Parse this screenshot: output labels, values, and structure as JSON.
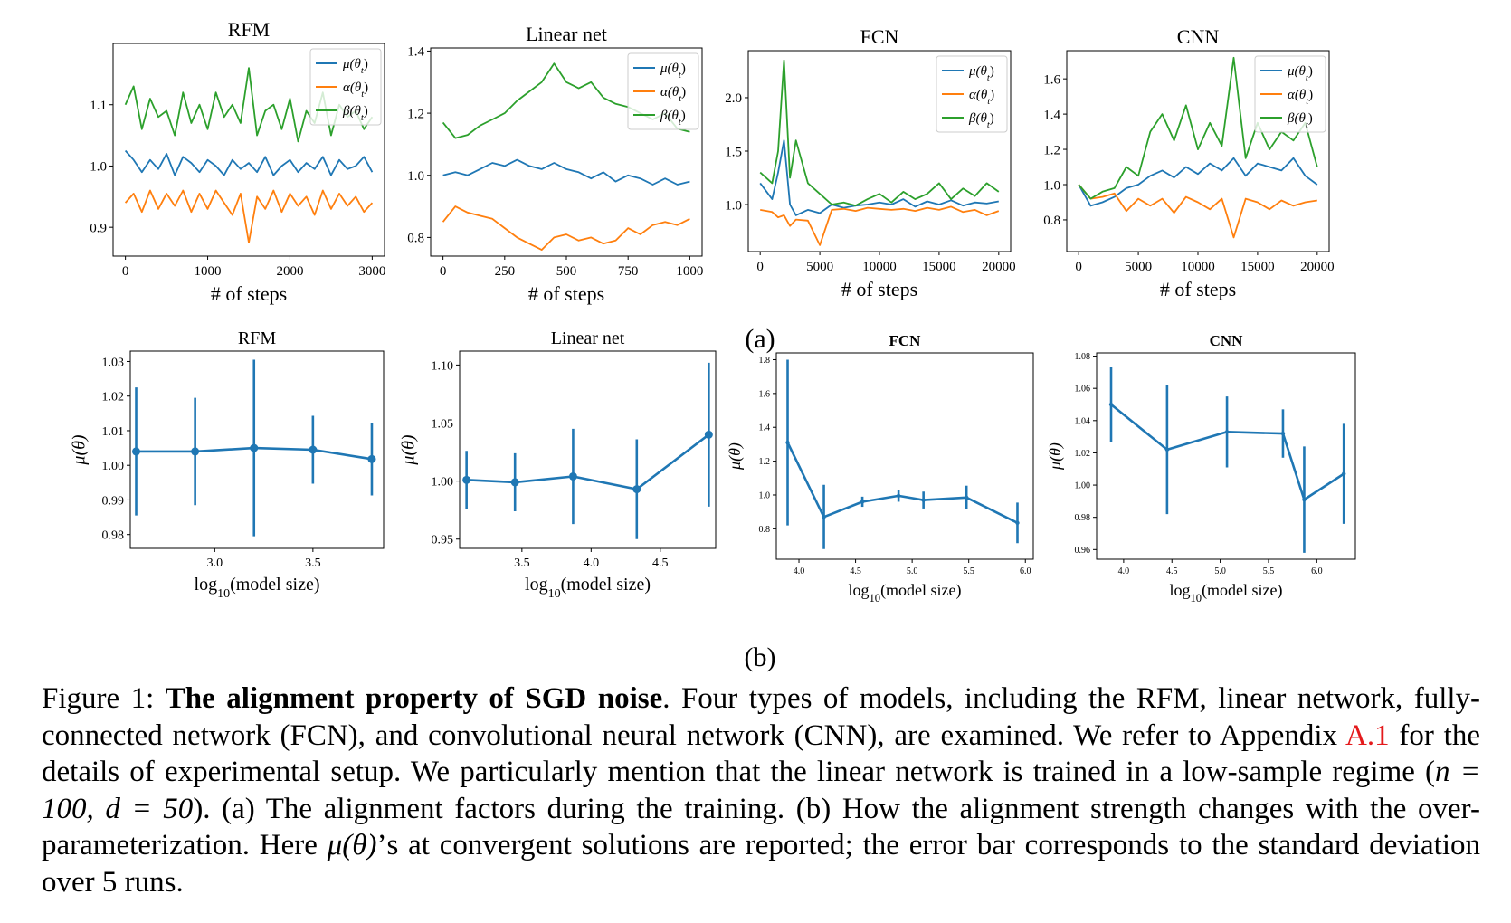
{
  "figure": {
    "row_a_label": "(a)",
    "row_b_label": "(b)",
    "legend_labels": [
      "μ(θt)",
      "α(θt)",
      "β(θt)"
    ],
    "colors": {
      "mu": "#1f77b4",
      "alpha": "#ff7f0e",
      "beta": "#2ca02c"
    }
  },
  "caption": {
    "figure_label": "Figure 1:",
    "bold_title": "The alignment property of SGD noise",
    "text_1": ". Four types of models, including the RFM, linear network, fully-connected network (FCN), and convolutional neural network (CNN), are examined. We refer to Appendix ",
    "ref": "A.1",
    "text_2": " for the details of experimental setup.  We particularly mention that the linear network is trained in a low-sample regime (",
    "math_1": "n = 100, d = 50",
    "text_3": "). (a) The alignment factors during the training. (b) How the alignment strength changes with the over-parameterization. Here ",
    "math_2": "μ(θ)",
    "text_4": "’s at convergent solutions are reported; the error bar corresponds to the standard deviation over 5 runs."
  },
  "chart_data": [
    {
      "id": "a-rfm",
      "type": "line",
      "title": "RFM",
      "xlabel": "# of steps",
      "ylabel": "",
      "xlim": [
        -150,
        3150
      ],
      "ylim": [
        0.853,
        1.2
      ],
      "xticks": [
        0,
        1000,
        2000,
        3000
      ],
      "xtick_labels": [
        "0",
        "1000",
        "2000",
        "3000"
      ],
      "yticks": [
        0.9,
        1.0,
        1.1
      ],
      "ytick_labels": [
        "0.9",
        "1.0",
        "1.1"
      ],
      "legend": "top-right",
      "grid": false,
      "x": [
        0,
        100,
        200,
        300,
        400,
        500,
        600,
        700,
        800,
        900,
        1000,
        1100,
        1200,
        1300,
        1400,
        1500,
        1600,
        1700,
        1800,
        1900,
        2000,
        2100,
        2200,
        2300,
        2400,
        2500,
        2600,
        2700,
        2800,
        2900,
        3000
      ],
      "series": [
        {
          "name": "μ(θt)",
          "color": "#1f77b4",
          "values": [
            1.025,
            1.01,
            0.99,
            1.01,
            0.995,
            1.02,
            0.985,
            1.015,
            1.005,
            0.99,
            1.01,
            1.0,
            0.985,
            1.01,
            0.995,
            1.005,
            0.99,
            1.015,
            0.985,
            1.0,
            1.01,
            0.99,
            1.005,
            0.995,
            1.015,
            0.985,
            1.01,
            0.995,
            1.0,
            1.015,
            0.99
          ]
        },
        {
          "name": "α(θt)",
          "color": "#ff7f0e",
          "values": [
            0.94,
            0.955,
            0.925,
            0.96,
            0.93,
            0.955,
            0.935,
            0.96,
            0.925,
            0.955,
            0.93,
            0.96,
            0.94,
            0.92,
            0.955,
            0.875,
            0.95,
            0.93,
            0.96,
            0.925,
            0.955,
            0.935,
            0.95,
            0.92,
            0.96,
            0.93,
            0.955,
            0.935,
            0.95,
            0.925,
            0.94
          ]
        },
        {
          "name": "β(θt)",
          "color": "#2ca02c",
          "values": [
            1.1,
            1.13,
            1.06,
            1.11,
            1.08,
            1.09,
            1.05,
            1.12,
            1.07,
            1.1,
            1.06,
            1.12,
            1.08,
            1.1,
            1.07,
            1.16,
            1.05,
            1.09,
            1.1,
            1.06,
            1.11,
            1.04,
            1.09,
            1.07,
            1.12,
            1.05,
            1.1,
            1.08,
            1.09,
            1.06,
            1.08
          ]
        }
      ]
    },
    {
      "id": "a-linear",
      "type": "line",
      "title": "Linear net",
      "xlabel": "# of steps",
      "ylabel": "",
      "xlim": [
        -50,
        1050
      ],
      "ylim": [
        0.74,
        1.41
      ],
      "xticks": [
        0,
        250,
        500,
        750,
        1000
      ],
      "xtick_labels": [
        "0",
        "250",
        "500",
        "750",
        "1000"
      ],
      "yticks": [
        0.8,
        1.0,
        1.2,
        1.4
      ],
      "ytick_labels": [
        "0.8",
        "1.0",
        "1.2",
        "1.4"
      ],
      "legend": "top-right",
      "grid": false,
      "x": [
        0,
        50,
        100,
        150,
        200,
        250,
        300,
        350,
        400,
        450,
        500,
        550,
        600,
        650,
        700,
        750,
        800,
        850,
        900,
        950,
        1000
      ],
      "series": [
        {
          "name": "μ(θt)",
          "color": "#1f77b4",
          "values": [
            1.0,
            1.01,
            1.0,
            1.02,
            1.04,
            1.03,
            1.05,
            1.03,
            1.02,
            1.04,
            1.02,
            1.01,
            0.99,
            1.01,
            0.98,
            1.0,
            0.99,
            0.97,
            0.99,
            0.97,
            0.98
          ]
        },
        {
          "name": "α(θt)",
          "color": "#ff7f0e",
          "values": [
            0.85,
            0.9,
            0.88,
            0.87,
            0.86,
            0.83,
            0.8,
            0.78,
            0.76,
            0.8,
            0.81,
            0.79,
            0.8,
            0.78,
            0.79,
            0.83,
            0.81,
            0.84,
            0.85,
            0.84,
            0.86
          ]
        },
        {
          "name": "β(θt)",
          "color": "#2ca02c",
          "values": [
            1.17,
            1.12,
            1.13,
            1.16,
            1.18,
            1.2,
            1.24,
            1.27,
            1.3,
            1.36,
            1.3,
            1.28,
            1.3,
            1.25,
            1.23,
            1.22,
            1.2,
            1.18,
            1.2,
            1.15,
            1.14
          ]
        }
      ]
    },
    {
      "id": "a-fcn",
      "type": "line",
      "title": "FCN",
      "xlabel": "# of steps",
      "ylabel": "",
      "xlim": [
        -1000,
        21000
      ],
      "ylim": [
        0.56,
        2.44
      ],
      "xticks": [
        0,
        5000,
        10000,
        15000,
        20000
      ],
      "xtick_labels": [
        "0",
        "5000",
        "10000",
        "15000",
        "20000"
      ],
      "yticks": [
        1.0,
        1.5,
        2.0
      ],
      "ytick_labels": [
        "1.0",
        "1.5",
        "2.0"
      ],
      "legend": "top-right",
      "grid": false,
      "x": [
        0,
        1000,
        1500,
        2000,
        2500,
        3000,
        4000,
        5000,
        6000,
        7000,
        8000,
        9000,
        10000,
        11000,
        12000,
        13000,
        14000,
        15000,
        16000,
        17000,
        18000,
        19000,
        20000
      ],
      "series": [
        {
          "name": "μ(θt)",
          "color": "#1f77b4",
          "values": [
            1.2,
            1.05,
            1.3,
            1.6,
            1.0,
            0.9,
            0.95,
            0.92,
            1.0,
            0.97,
            0.99,
            1.0,
            1.02,
            1.0,
            1.05,
            0.98,
            1.03,
            1.0,
            1.04,
            0.99,
            1.02,
            1.01,
            1.03
          ]
        },
        {
          "name": "α(θt)",
          "color": "#ff7f0e",
          "values": [
            0.95,
            0.93,
            0.88,
            0.9,
            0.8,
            0.86,
            0.85,
            0.62,
            0.95,
            0.96,
            0.94,
            0.97,
            0.96,
            0.95,
            0.96,
            0.94,
            0.97,
            0.95,
            0.98,
            0.93,
            0.95,
            0.9,
            0.94
          ]
        },
        {
          "name": "β(θt)",
          "color": "#2ca02c",
          "values": [
            1.3,
            1.2,
            1.5,
            2.35,
            1.25,
            1.6,
            1.2,
            1.1,
            1.0,
            1.02,
            0.99,
            1.05,
            1.1,
            1.02,
            1.12,
            1.05,
            1.1,
            1.2,
            1.05,
            1.15,
            1.08,
            1.2,
            1.12
          ]
        }
      ]
    },
    {
      "id": "a-cnn",
      "type": "line",
      "title": "CNN",
      "xlabel": "# of steps",
      "ylabel": "",
      "xlim": [
        -1000,
        21000
      ],
      "ylim": [
        0.62,
        1.76
      ],
      "xticks": [
        0,
        5000,
        10000,
        15000,
        20000
      ],
      "xtick_labels": [
        "0",
        "5000",
        "10000",
        "15000",
        "20000"
      ],
      "yticks": [
        0.8,
        1.0,
        1.2,
        1.4,
        1.6
      ],
      "ytick_labels": [
        "0.8",
        "1.0",
        "1.2",
        "1.4",
        "1.6"
      ],
      "legend": "top-right",
      "grid": false,
      "x": [
        0,
        1000,
        2000,
        3000,
        4000,
        5000,
        6000,
        7000,
        8000,
        9000,
        10000,
        11000,
        12000,
        13000,
        14000,
        15000,
        16000,
        17000,
        18000,
        19000,
        20000
      ],
      "series": [
        {
          "name": "μ(θt)",
          "color": "#1f77b4",
          "values": [
            1.0,
            0.88,
            0.9,
            0.93,
            0.98,
            1.0,
            1.05,
            1.08,
            1.04,
            1.1,
            1.06,
            1.12,
            1.08,
            1.15,
            1.05,
            1.12,
            1.1,
            1.08,
            1.15,
            1.05,
            1.0
          ]
        },
        {
          "name": "α(θt)",
          "color": "#ff7f0e",
          "values": [
            1.0,
            0.92,
            0.93,
            0.95,
            0.85,
            0.92,
            0.88,
            0.92,
            0.84,
            0.93,
            0.9,
            0.86,
            0.92,
            0.7,
            0.92,
            0.9,
            0.86,
            0.91,
            0.88,
            0.9,
            0.91
          ]
        },
        {
          "name": "β(θt)",
          "color": "#2ca02c",
          "values": [
            1.0,
            0.92,
            0.96,
            0.98,
            1.1,
            1.05,
            1.3,
            1.4,
            1.25,
            1.45,
            1.2,
            1.35,
            1.22,
            1.72,
            1.15,
            1.35,
            1.2,
            1.3,
            1.25,
            1.35,
            1.1
          ]
        }
      ]
    },
    {
      "id": "b-rfm",
      "type": "line",
      "title": "RFM",
      "xlabel": "log10(model size)",
      "ylabel": "μ(θ)",
      "xlim": [
        2.57,
        3.86
      ],
      "ylim": [
        0.976,
        1.033
      ],
      "xticks": [
        3.0,
        3.5
      ],
      "xtick_labels": [
        "3.0",
        "3.5"
      ],
      "yticks": [
        0.98,
        0.99,
        1.0,
        1.01,
        1.02,
        1.03
      ],
      "ytick_labels": [
        "0.98",
        "0.99",
        "1.00",
        "1.01",
        "1.02",
        "1.03"
      ],
      "grid": false,
      "error_bars": true,
      "marker": "circle",
      "x": [
        2.6,
        2.9,
        3.2,
        3.5,
        3.8
      ],
      "series": [
        {
          "name": "",
          "color": "#1f77b4",
          "values": [
            1.004,
            1.004,
            1.005,
            1.0045,
            1.0018
          ],
          "errors": [
            0.0185,
            0.0155,
            0.0255,
            0.0098,
            0.0105
          ]
        }
      ]
    },
    {
      "id": "b-linear",
      "type": "line",
      "title": "Linear net",
      "xlabel": "log10(model size)",
      "ylabel": "μ(θ)",
      "xlim": [
        3.05,
        4.9
      ],
      "ylim": [
        0.942,
        1.112
      ],
      "xticks": [
        3.5,
        4.0,
        4.5
      ],
      "xtick_labels": [
        "3.5",
        "4.0",
        "4.5"
      ],
      "yticks": [
        0.95,
        1.0,
        1.05,
        1.1
      ],
      "ytick_labels": [
        "0.95",
        "1.00",
        "1.05",
        "1.10"
      ],
      "grid": false,
      "error_bars": true,
      "marker": "circle",
      "x": [
        3.1,
        3.45,
        3.87,
        4.33,
        4.85
      ],
      "series": [
        {
          "name": "",
          "color": "#1f77b4",
          "values": [
            1.001,
            0.999,
            1.004,
            0.993,
            1.04
          ],
          "errors": [
            0.025,
            0.025,
            0.041,
            0.043,
            0.062
          ]
        }
      ]
    },
    {
      "id": "b-fcn",
      "type": "line",
      "title": "FCN",
      "xlabel": "log10(model size)",
      "ylabel": "μ(θ)",
      "xlim": [
        3.8,
        6.07
      ],
      "ylim": [
        0.62,
        1.84
      ],
      "xticks": [
        4.0,
        4.5,
        5.0,
        5.5,
        6.0
      ],
      "xtick_labels": [
        "4.0",
        "4.5",
        "5.0",
        "5.5",
        "6.0"
      ],
      "yticks": [
        0.8,
        1.0,
        1.2,
        1.4,
        1.6,
        1.8
      ],
      "ytick_labels": [
        "0.8",
        "1.0",
        "1.2",
        "1.4",
        "1.6",
        "1.8"
      ],
      "grid": false,
      "error_bars": true,
      "marker": "none",
      "x": [
        3.9,
        4.22,
        4.56,
        4.88,
        5.1,
        5.48,
        5.93
      ],
      "series": [
        {
          "name": "",
          "color": "#1f77b4",
          "values": [
            1.31,
            0.87,
            0.96,
            0.995,
            0.97,
            0.985,
            0.835
          ],
          "errors": [
            0.49,
            0.19,
            0.03,
            0.035,
            0.05,
            0.07,
            0.12
          ]
        }
      ]
    },
    {
      "id": "b-cnn",
      "type": "line",
      "title": "CNN",
      "xlabel": "log10(model size)",
      "ylabel": "μ(θ)",
      "xlim": [
        3.72,
        6.4
      ],
      "ylim": [
        0.954,
        1.082
      ],
      "xticks": [
        4.0,
        4.5,
        5.0,
        5.5,
        6.0
      ],
      "xtick_labels": [
        "4.0",
        "4.5",
        "5.0",
        "5.5",
        "6.0"
      ],
      "yticks": [
        0.96,
        0.98,
        1.0,
        1.02,
        1.04,
        1.06,
        1.08
      ],
      "ytick_labels": [
        "0.96",
        "0.98",
        "1.00",
        "1.02",
        "1.04",
        "1.06",
        "1.08"
      ],
      "grid": false,
      "error_bars": true,
      "marker": "none",
      "x": [
        3.87,
        4.45,
        5.07,
        5.65,
        5.87,
        6.28
      ],
      "series": [
        {
          "name": "",
          "color": "#1f77b4",
          "values": [
            1.05,
            1.022,
            1.033,
            1.032,
            0.991,
            1.007
          ],
          "errors": [
            0.023,
            0.04,
            0.022,
            0.015,
            0.033,
            0.031
          ]
        }
      ]
    }
  ]
}
